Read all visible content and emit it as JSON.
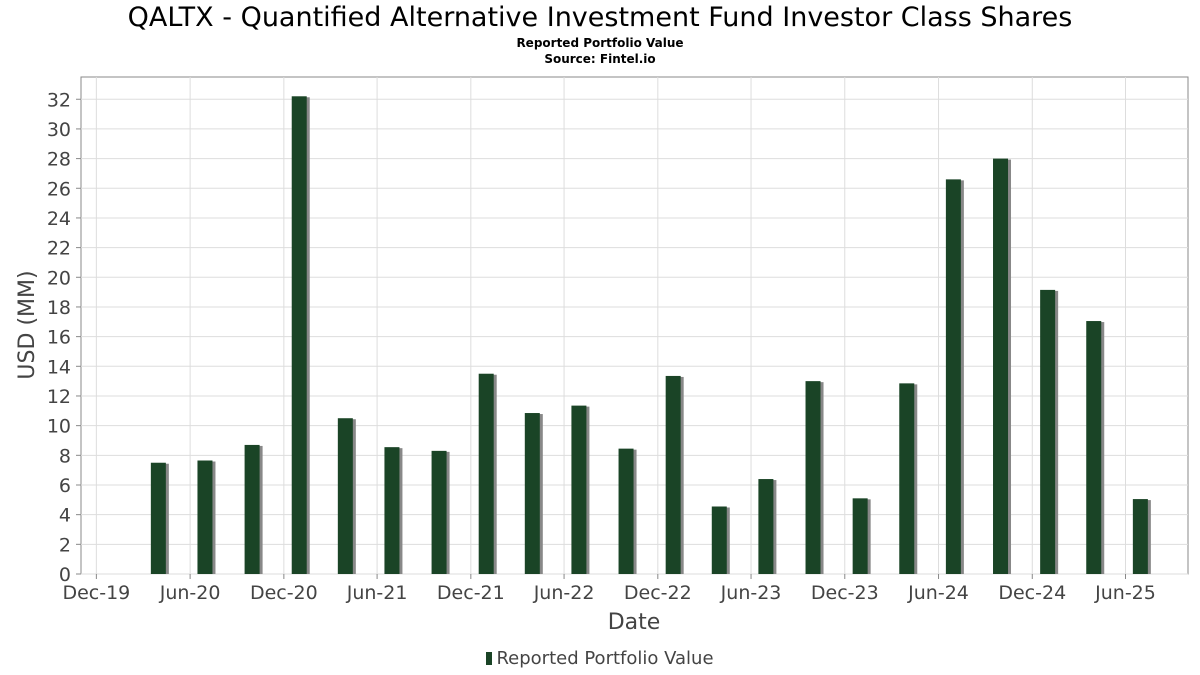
{
  "title": "QALTX - Quantified Alternative Investment Fund Investor Class Shares",
  "subtitle": "Reported Portfolio Value",
  "source": "Source: Fintel.io",
  "colors": {
    "bar": "#1a4426",
    "bar_shadow": "#888888",
    "grid": "#dddddd",
    "axis_text": "#444444"
  },
  "chart_data": {
    "type": "bar",
    "title": "QALTX - Quantified Alternative Investment Fund Investor Class Shares",
    "xlabel": "Date",
    "ylabel": "USD (MM)",
    "ylim": [
      0,
      33.5
    ],
    "yticks": [
      0,
      2,
      4,
      6,
      8,
      10,
      12,
      14,
      16,
      18,
      20,
      22,
      24,
      26,
      28,
      30,
      32
    ],
    "x_range": [
      "2019-11-01",
      "2025-10-01"
    ],
    "xticks": [
      {
        "date": "2019-12-01",
        "label": "Dec-19"
      },
      {
        "date": "2020-06-01",
        "label": "Jun-20"
      },
      {
        "date": "2020-12-01",
        "label": "Dec-20"
      },
      {
        "date": "2021-06-01",
        "label": "Jun-21"
      },
      {
        "date": "2021-12-01",
        "label": "Dec-21"
      },
      {
        "date": "2022-06-01",
        "label": "Jun-22"
      },
      {
        "date": "2022-12-01",
        "label": "Dec-22"
      },
      {
        "date": "2023-06-01",
        "label": "Jun-23"
      },
      {
        "date": "2023-12-01",
        "label": "Dec-23"
      },
      {
        "date": "2024-06-01",
        "label": "Jun-24"
      },
      {
        "date": "2024-12-01",
        "label": "Dec-24"
      },
      {
        "date": "2025-06-01",
        "label": "Jun-25"
      }
    ],
    "grid": true,
    "legend_position": "bottom",
    "series": [
      {
        "name": "Reported Portfolio Value",
        "points": [
          {
            "x": "2020-03-31",
            "y": 7.5
          },
          {
            "x": "2020-06-30",
            "y": 7.65
          },
          {
            "x": "2020-09-30",
            "y": 8.7
          },
          {
            "x": "2020-12-31",
            "y": 32.2
          },
          {
            "x": "2021-03-31",
            "y": 10.5
          },
          {
            "x": "2021-06-30",
            "y": 8.55
          },
          {
            "x": "2021-09-30",
            "y": 8.3
          },
          {
            "x": "2021-12-31",
            "y": 13.5
          },
          {
            "x": "2022-03-31",
            "y": 10.85
          },
          {
            "x": "2022-06-30",
            "y": 11.35
          },
          {
            "x": "2022-09-30",
            "y": 8.45
          },
          {
            "x": "2022-12-31",
            "y": 13.35
          },
          {
            "x": "2023-03-31",
            "y": 4.55
          },
          {
            "x": "2023-06-30",
            "y": 6.4
          },
          {
            "x": "2023-09-30",
            "y": 13.0
          },
          {
            "x": "2023-12-31",
            "y": 5.1
          },
          {
            "x": "2024-03-31",
            "y": 12.85
          },
          {
            "x": "2024-06-30",
            "y": 26.6
          },
          {
            "x": "2024-09-30",
            "y": 28.0
          },
          {
            "x": "2024-12-31",
            "y": 19.15
          },
          {
            "x": "2025-03-31",
            "y": 17.05
          },
          {
            "x": "2025-06-30",
            "y": 5.05
          }
        ]
      }
    ]
  }
}
